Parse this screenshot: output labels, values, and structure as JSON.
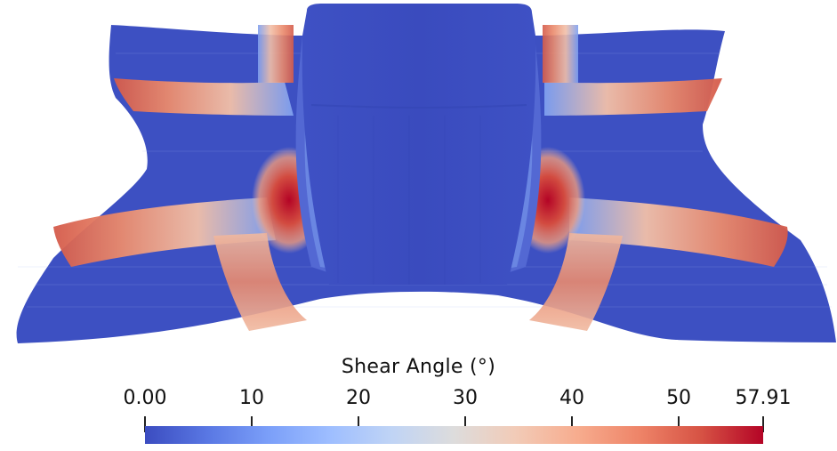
{
  "colorbar": {
    "title": "Shear Angle (°)",
    "min": 0.0,
    "max": 57.91,
    "ticks": [
      {
        "label": "0.00",
        "value": 0.0
      },
      {
        "label": "10",
        "value": 10
      },
      {
        "label": "20",
        "value": 20
      },
      {
        "label": "30",
        "value": 30
      },
      {
        "label": "40",
        "value": 40
      },
      {
        "label": "50",
        "value": 50
      },
      {
        "label": "57.91",
        "value": 57.91
      }
    ],
    "colormap": [
      "#3b4cc0",
      "#5977e3",
      "#7b9ff9",
      "#9ebeff",
      "#c0d4f5",
      "#dddcdc",
      "#f2cbb7",
      "#f7ac8e",
      "#ee8468",
      "#d65244",
      "#b40426"
    ]
  },
  "colors": {
    "low": "#3b4cc0",
    "mid": "#dddcdc",
    "high": "#b40426"
  }
}
